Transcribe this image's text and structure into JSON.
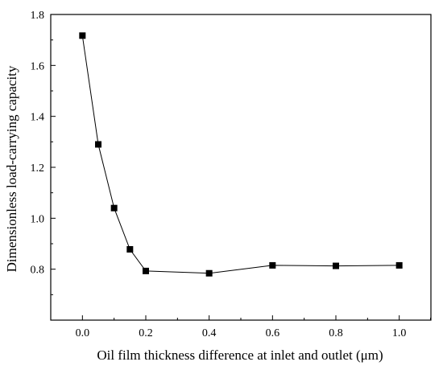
{
  "chart_data": {
    "type": "line",
    "title": "",
    "xlabel": "Oil film thickness difference at inlet and outlet (μm)",
    "ylabel": "Dimensionless load-carrying capacity",
    "xlim": [
      -0.1,
      1.1
    ],
    "ylim": [
      0.6,
      1.8
    ],
    "xticks": [
      0.0,
      0.2,
      0.4,
      0.6,
      0.8,
      1.0
    ],
    "xtick_labels": [
      "0.0",
      "0.2",
      "0.4",
      "0.6",
      "0.8",
      "1.0"
    ],
    "yticks": [
      0.8,
      1.0,
      1.2,
      1.4,
      1.6,
      1.8
    ],
    "ytick_labels": [
      "0.8",
      "1.0",
      "1.2",
      "1.4",
      "1.6",
      "1.8"
    ],
    "grid": false,
    "legend": "none",
    "marker": "square",
    "line_color": "#000000",
    "marker_color": "#000000",
    "series": [
      {
        "x": [
          0.0,
          0.05,
          0.1,
          0.15,
          0.2,
          0.4,
          0.6,
          0.8,
          1.0
        ],
        "y": [
          1.717,
          1.29,
          1.04,
          0.878,
          0.793,
          0.784,
          0.815,
          0.813,
          0.815
        ]
      }
    ]
  }
}
